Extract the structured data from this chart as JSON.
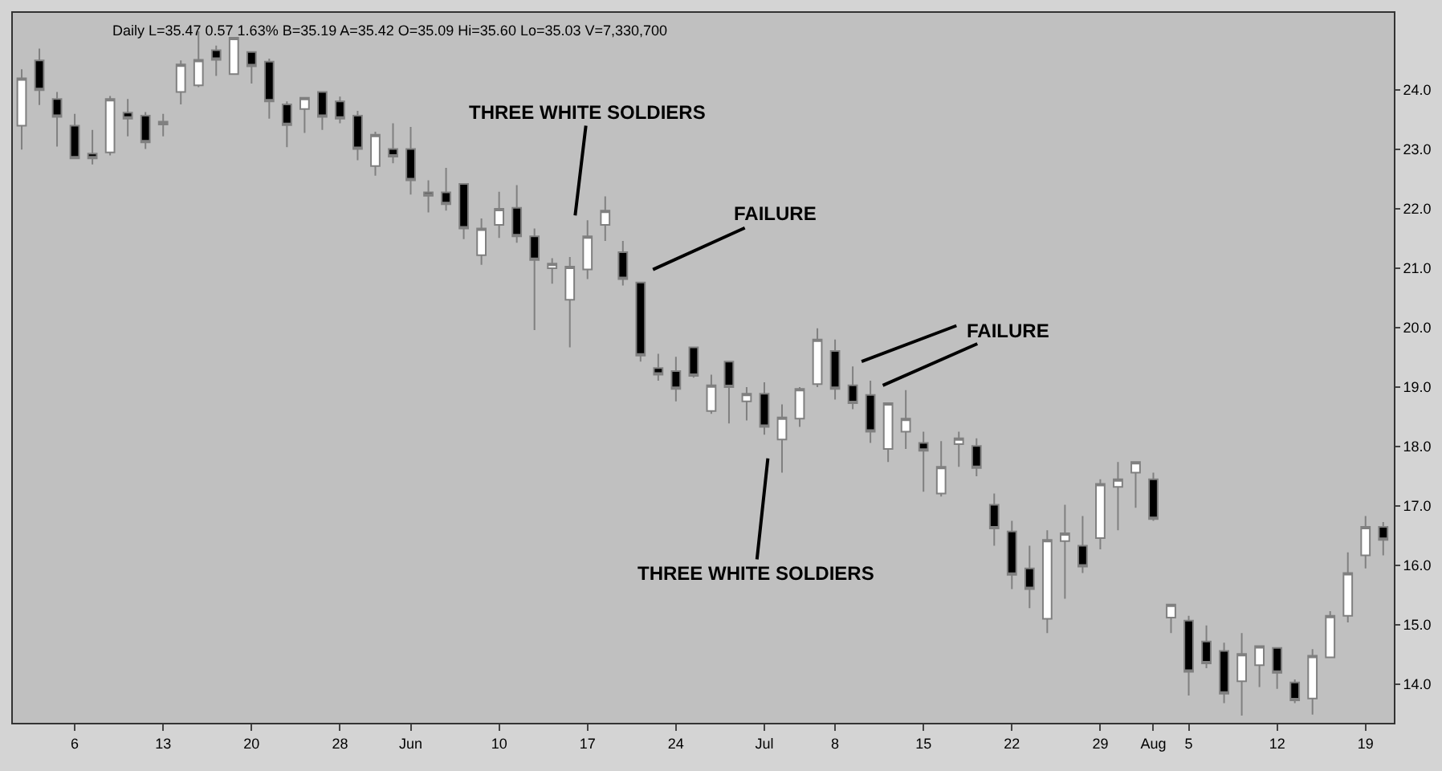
{
  "chart_data": {
    "type": "candlestick",
    "categories": [
      null,
      null,
      null,
      "6",
      null,
      null,
      null,
      null,
      "13",
      null,
      null,
      null,
      null,
      "20",
      null,
      null,
      null,
      null,
      "28",
      null,
      null,
      null,
      "Jun",
      null,
      null,
      null,
      null,
      "10",
      null,
      null,
      null,
      null,
      "17",
      null,
      null,
      null,
      null,
      "24",
      null,
      null,
      null,
      null,
      "Jul",
      null,
      null,
      null,
      "8",
      null,
      null,
      null,
      null,
      "15",
      null,
      null,
      null,
      null,
      "22",
      null,
      null,
      null,
      null,
      "29",
      null,
      null,
      "Aug",
      null,
      "5",
      null,
      null,
      null,
      null,
      "12",
      null,
      null,
      null,
      null,
      "19",
      null
    ],
    "ohlc": [
      [
        23.4,
        24.35,
        23.0,
        24.2
      ],
      [
        24.5,
        24.7,
        23.75,
        24.0
      ],
      [
        23.85,
        23.97,
        23.05,
        23.55
      ],
      [
        23.4,
        23.6,
        22.85,
        22.85
      ],
      [
        22.93,
        23.33,
        22.75,
        22.85
      ],
      [
        22.95,
        23.9,
        22.9,
        23.85
      ],
      [
        23.62,
        23.85,
        23.22,
        23.52
      ],
      [
        23.57,
        23.63,
        23.01,
        23.12
      ],
      [
        23.42,
        23.6,
        23.22,
        23.47
      ],
      [
        23.97,
        24.5,
        23.76,
        24.43
      ],
      [
        24.08,
        24.99,
        24.05,
        24.51
      ],
      [
        24.67,
        24.75,
        24.24,
        24.51
      ],
      [
        24.27,
        24.88,
        24.27,
        24.88
      ],
      [
        24.64,
        24.64,
        24.11,
        24.4
      ],
      [
        24.48,
        24.53,
        23.52,
        23.81
      ],
      [
        23.76,
        23.81,
        23.04,
        23.41
      ],
      [
        23.68,
        23.87,
        23.28,
        23.87
      ],
      [
        23.97,
        23.97,
        23.33,
        23.55
      ],
      [
        23.81,
        23.89,
        23.44,
        23.52
      ],
      [
        23.57,
        23.65,
        22.82,
        23.01
      ],
      [
        22.72,
        23.3,
        22.56,
        23.25
      ],
      [
        23.01,
        23.44,
        22.77,
        22.88
      ],
      [
        23.01,
        23.38,
        22.24,
        22.48
      ],
      [
        22.28,
        22.48,
        21.94,
        22.22
      ],
      [
        22.28,
        22.69,
        21.97,
        22.08
      ],
      [
        22.42,
        22.42,
        21.49,
        21.67
      ],
      [
        21.22,
        21.84,
        21.06,
        21.67
      ],
      [
        21.73,
        22.29,
        21.51,
        22.0
      ],
      [
        22.02,
        22.4,
        21.43,
        21.54
      ],
      [
        21.54,
        21.67,
        19.96,
        21.14
      ],
      [
        21.0,
        21.17,
        20.74,
        21.08
      ],
      [
        20.47,
        21.19,
        19.67,
        21.03
      ],
      [
        20.98,
        21.81,
        20.82,
        21.54
      ],
      [
        21.73,
        22.21,
        21.46,
        21.97
      ],
      [
        21.27,
        21.46,
        20.71,
        20.82
      ],
      [
        20.76,
        20.76,
        19.43,
        19.53
      ],
      [
        19.32,
        19.56,
        19.11,
        19.21
      ],
      [
        19.27,
        19.51,
        18.76,
        18.97
      ],
      [
        19.67,
        19.67,
        19.16,
        19.19
      ],
      [
        18.6,
        19.21,
        18.55,
        19.03
      ],
      [
        19.43,
        19.43,
        18.39,
        19.0
      ],
      [
        18.76,
        19.0,
        18.44,
        18.89
      ],
      [
        18.89,
        19.08,
        18.2,
        18.33
      ],
      [
        18.12,
        18.71,
        17.56,
        18.49
      ],
      [
        18.47,
        19.0,
        18.33,
        18.97
      ],
      [
        19.05,
        19.99,
        19.0,
        19.8
      ],
      [
        19.61,
        19.8,
        18.79,
        18.97
      ],
      [
        19.03,
        19.35,
        18.63,
        18.73
      ],
      [
        18.87,
        19.11,
        18.06,
        18.25
      ],
      [
        17.96,
        18.73,
        17.74,
        18.73
      ],
      [
        18.25,
        18.95,
        17.96,
        18.47
      ],
      [
        18.06,
        18.25,
        17.24,
        17.93
      ],
      [
        17.21,
        18.09,
        17.16,
        17.66
      ],
      [
        18.04,
        18.25,
        17.66,
        18.14
      ],
      [
        18.01,
        18.14,
        17.5,
        17.64
      ],
      [
        17.02,
        17.21,
        16.33,
        16.62
      ],
      [
        16.57,
        16.75,
        15.6,
        15.84
      ],
      [
        15.95,
        16.33,
        15.28,
        15.6
      ],
      [
        15.1,
        16.59,
        14.86,
        16.43
      ],
      [
        16.41,
        17.02,
        15.44,
        16.54
      ],
      [
        16.33,
        16.83,
        15.87,
        15.98
      ],
      [
        16.46,
        17.45,
        16.27,
        17.37
      ],
      [
        17.32,
        17.74,
        16.59,
        17.45
      ],
      [
        17.56,
        17.74,
        16.97,
        17.74
      ],
      [
        17.45,
        17.56,
        16.75,
        16.78
      ],
      [
        15.12,
        15.34,
        14.86,
        15.34
      ],
      [
        15.07,
        15.15,
        13.81,
        14.21
      ],
      [
        14.72,
        14.99,
        14.27,
        14.35
      ],
      [
        14.56,
        14.7,
        13.68,
        13.84
      ],
      [
        14.05,
        14.86,
        13.47,
        14.51
      ],
      [
        14.32,
        14.64,
        13.95,
        14.64
      ],
      [
        14.61,
        14.61,
        13.92,
        14.19
      ],
      [
        14.03,
        14.08,
        13.68,
        13.73
      ],
      [
        13.76,
        14.59,
        13.49,
        14.48
      ],
      [
        14.45,
        15.23,
        14.45,
        15.15
      ],
      [
        15.15,
        16.22,
        15.04,
        15.87
      ],
      [
        16.17,
        16.83,
        15.95,
        16.65
      ],
      [
        16.65,
        16.73,
        16.17,
        16.43
      ]
    ],
    "ylim": [
      13.35,
      25.3
    ],
    "yticks": [
      {
        "value": 14,
        "label": "14.0"
      },
      {
        "value": 15,
        "label": "15.0"
      },
      {
        "value": 16,
        "label": "16.0"
      },
      {
        "value": 17,
        "label": "17.0"
      },
      {
        "value": 18,
        "label": "18.0"
      },
      {
        "value": 19,
        "label": "19.0"
      },
      {
        "value": 20,
        "label": "20.0"
      },
      {
        "value": 21,
        "label": "21.0"
      },
      {
        "value": 22,
        "label": "22.0"
      },
      {
        "value": 23,
        "label": "23.0"
      },
      {
        "value": 24,
        "label": "24.0"
      }
    ],
    "annotations": [
      "Daily L=35.47 0.57 1.63% B=35.19 A=35.42 O=35.09 Hi=35.60 Lo=35.03 V=7,330,700",
      "THREE WHITE SOLDIERS",
      "FAILURE",
      "FAILURE",
      "THREE WHITE SOLDIERS"
    ],
    "grid": false,
    "legend": false
  }
}
